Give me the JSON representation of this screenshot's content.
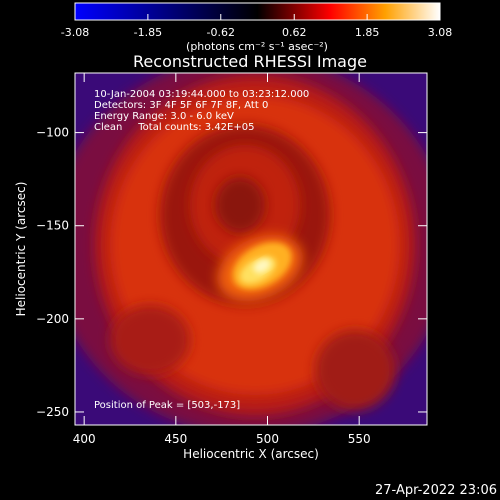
{
  "colorbar": {
    "ticks": [
      "-3.08",
      "-1.85",
      "-0.62",
      "0.62",
      "1.85",
      "3.08"
    ],
    "unit_label": "(photons cm⁻² s⁻¹ asec⁻²)",
    "min": -3.08,
    "max": 3.08,
    "colors": [
      "#0000ff",
      "#000000",
      "#ff0000",
      "#ffff00",
      "#ffffff"
    ]
  },
  "chart_data": {
    "type": "heatmap",
    "title": "Reconstructed RHESSI Image",
    "xlabel": "Heliocentric X (arcsec)",
    "ylabel": "Heliocentric Y (arcsec)",
    "xlim": [
      395,
      587
    ],
    "ylim": [
      -257,
      -68
    ],
    "xticks": [
      400,
      450,
      500,
      550
    ],
    "yticks": [
      -100,
      -150,
      -200,
      -250
    ],
    "peak": [
      503,
      -173
    ],
    "annotations": [
      "10-Jan-2004 03:19:44.000 to 03:23:12.000",
      "Detectors: 3F 4F 5F 6F 7F 8F, Att 0",
      "Energy Range: 3.0 - 6.0 keV",
      "Clean     Total counts: 3.42E+05"
    ],
    "peak_label": "Position of Peak = [503,-173]"
  },
  "footer": {
    "date": "27-Apr-2022 23:06"
  }
}
